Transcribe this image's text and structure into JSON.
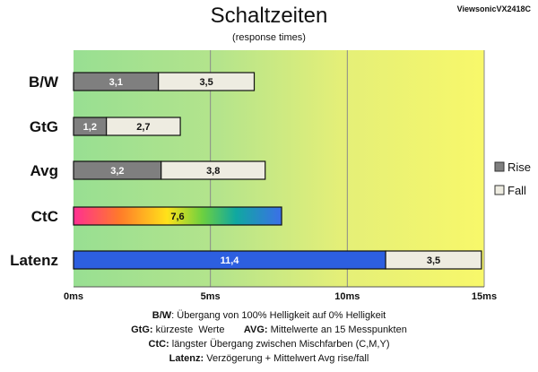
{
  "header": {
    "title": "Schaltzeiten",
    "subtitle": "(response times)",
    "model": "ViewsonicVX2418C"
  },
  "colors": {
    "rise": "#7f7f7f",
    "fall": "#eeece1",
    "latency": "#2d5fe0",
    "gradient_green": "#9ee09a",
    "gradient_yellow": "#f6f76a"
  },
  "chart_data": {
    "type": "bar",
    "orientation": "horizontal",
    "stacked": true,
    "title": "Schaltzeiten",
    "subtitle": "(response times)",
    "categories": [
      "B/W",
      "GtG",
      "Avg",
      "CtC",
      "Latenz"
    ],
    "series": [
      {
        "name": "Rise",
        "values": [
          3.1,
          1.2,
          3.2,
          null,
          null
        ],
        "labels": [
          "3,1",
          "1,2",
          "3,2",
          "",
          ""
        ]
      },
      {
        "name": "Fall",
        "values": [
          3.5,
          2.7,
          3.8,
          null,
          3.5
        ],
        "labels": [
          "3,5",
          "2,7",
          "3,8",
          "",
          "3,5"
        ]
      }
    ],
    "ctc": {
      "value": 7.6,
      "label": "7,6",
      "fill": "rainbow"
    },
    "latency": {
      "value": 11.4,
      "label": "11,4"
    },
    "xlim": [
      0,
      15
    ],
    "xticks": [
      0,
      5,
      10,
      15
    ],
    "xtick_labels": [
      "0ms",
      "5ms",
      "10ms",
      "15ms"
    ],
    "legend": [
      "Rise",
      "Fall"
    ],
    "legend_position": "right",
    "grid": true,
    "background": "green-to-yellow gradient"
  },
  "notes": [
    {
      "b1": "B/W",
      "t1": ":  Übergang von 100% Helligkeit auf 0% Helligkeit",
      "b2": "",
      "t2": ""
    },
    {
      "b1": "GtG:",
      "t1": " kürzeste  Werte       ",
      "b2": "AVG:",
      "t2": " Mittelwerte  an 15  Messpunkten"
    },
    {
      "b1": "CtC:",
      "t1": " längster Übergang  zwischen Mischfarben  (C,M,Y)",
      "b2": "",
      "t2": ""
    },
    {
      "b1": "Latenz:",
      "t1": " Verzögerung  + Mittelwert Avg rise/fall",
      "b2": "",
      "t2": ""
    }
  ]
}
